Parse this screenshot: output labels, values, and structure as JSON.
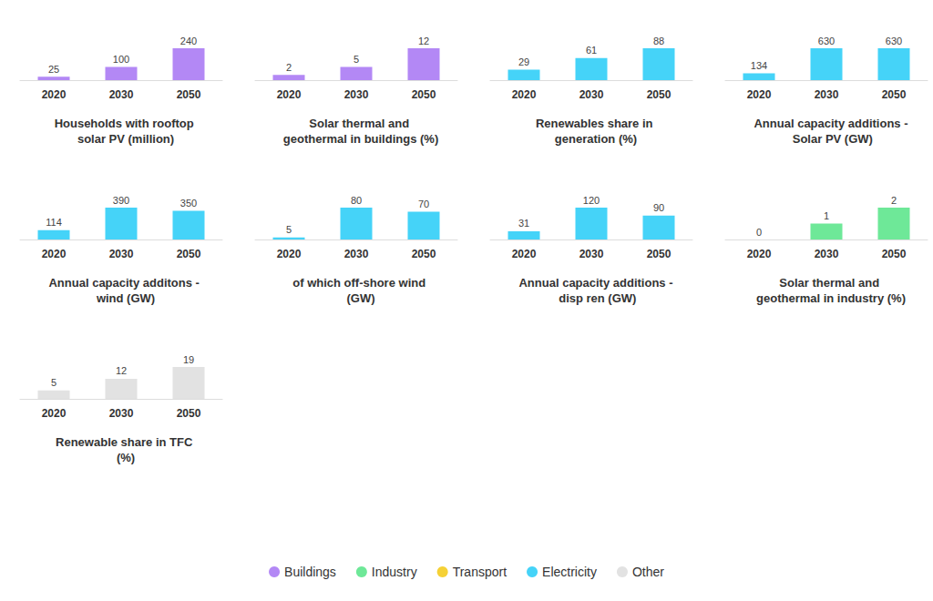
{
  "chart_data": [
    {
      "type": "bar",
      "title": "Households with rooftop solar PV (million)",
      "categories": [
        "2020",
        "2030",
        "2050"
      ],
      "values": [
        25,
        100,
        240
      ],
      "color": "#b388f5",
      "ylim": [
        0,
        240
      ],
      "data_labels": true,
      "tick_labels": "x"
    },
    {
      "type": "bar",
      "title": "Solar thermal and geothermal in buildings (%)",
      "categories": [
        "2020",
        "2030",
        "2050"
      ],
      "values": [
        2,
        5,
        12
      ],
      "color": "#b388f5",
      "ylim": [
        0,
        12
      ],
      "data_labels": true,
      "tick_labels": "x"
    },
    {
      "type": "bar",
      "title": "Renewables share in generation (%)",
      "categories": [
        "2020",
        "2030",
        "2050"
      ],
      "values": [
        29,
        61,
        88
      ],
      "color": "#45d3f8",
      "ylim": [
        0,
        88
      ],
      "data_labels": true,
      "tick_labels": "x"
    },
    {
      "type": "bar",
      "title": "Annual capacity additions - Solar PV (GW)",
      "categories": [
        "2020",
        "2030",
        "2050"
      ],
      "values": [
        134,
        630,
        630
      ],
      "color": "#45d3f8",
      "ylim": [
        0,
        630
      ],
      "data_labels": true,
      "tick_labels": "x"
    },
    {
      "type": "bar",
      "title": "Annual capacity additons - wind (GW)",
      "categories": [
        "2020",
        "2030",
        "2050"
      ],
      "values": [
        114,
        390,
        350
      ],
      "color": "#45d3f8",
      "ylim": [
        0,
        390
      ],
      "data_labels": true,
      "tick_labels": "x"
    },
    {
      "type": "bar",
      "title": "of which off-shore wind (GW)",
      "categories": [
        "2020",
        "2030",
        "2050"
      ],
      "values": [
        5,
        80,
        70
      ],
      "color": "#45d3f8",
      "ylim": [
        0,
        80
      ],
      "data_labels": true,
      "tick_labels": "x"
    },
    {
      "type": "bar",
      "title": "Annual capacity additions - disp ren (GW)",
      "categories": [
        "2020",
        "2030",
        "2050"
      ],
      "values": [
        31,
        120,
        90
      ],
      "color": "#45d3f8",
      "ylim": [
        0,
        120
      ],
      "data_labels": true,
      "tick_labels": "x"
    },
    {
      "type": "bar",
      "title": "Solar thermal and geothermal in industry (%)",
      "categories": [
        "2020",
        "2030",
        "2050"
      ],
      "values": [
        0,
        1,
        2
      ],
      "color": "#6ee898",
      "ylim": [
        0,
        2
      ],
      "data_labels": true,
      "tick_labels": "x"
    },
    {
      "type": "bar",
      "title": "Renewable share in TFC (%)",
      "categories": [
        "2020",
        "2030",
        "2050"
      ],
      "values": [
        5,
        12,
        19
      ],
      "color": "#e2e2e2",
      "ylim": [
        0,
        19
      ],
      "data_labels": true,
      "tick_labels": "x"
    }
  ],
  "legend_entries": [
    {
      "name": "Buildings",
      "color": "#b388f5"
    },
    {
      "name": "Industry",
      "color": "#6ee898"
    },
    {
      "name": "Transport",
      "color": "#f5d136"
    },
    {
      "name": "Electricity",
      "color": "#45d3f8"
    },
    {
      "name": "Other",
      "color": "#e2e2e2"
    }
  ]
}
